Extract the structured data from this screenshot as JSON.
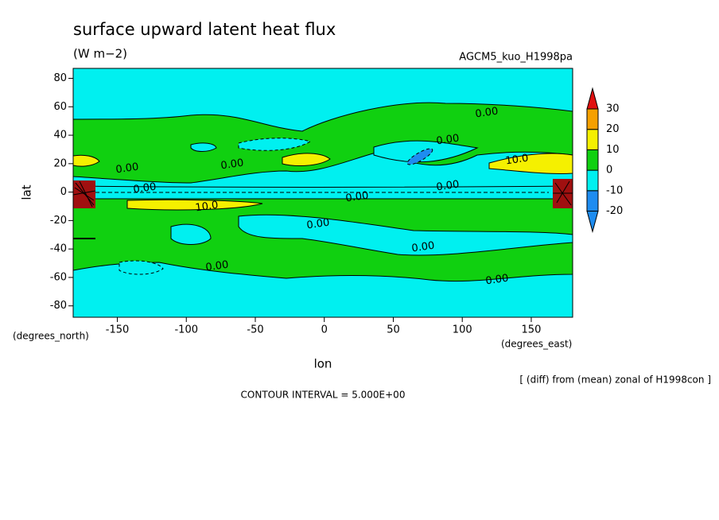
{
  "chart_data": {
    "type": "contour",
    "title": "surface upward latent heat flux",
    "subtitle": "(W m−2)",
    "experiment": "AGCM5_kuo_H1998pa",
    "xlabel": "lon",
    "ylabel": "lat",
    "xunit": "(degrees_east)",
    "yunit": "(degrees_north)",
    "note": "[ (diff) from (mean) zonal of H1998con ]",
    "contour_interval": "CONTOUR INTERVAL = 5.000E+00",
    "xlim": [
      -182,
      180
    ],
    "xticks": [
      -150,
      -100,
      -50,
      0,
      50,
      100,
      150
    ],
    "ylim": [
      -88,
      87
    ],
    "yticks": [
      80,
      60,
      40,
      20,
      0,
      -20,
      -40,
      -60,
      -80
    ],
    "colorbar": {
      "levels": [
        -20,
        -10,
        0,
        10,
        20,
        30
      ],
      "colors": [
        "#1e8cf0",
        "#1e8cf0",
        "#00f0f0",
        "#10d010",
        "#f5f000",
        "#f5a000",
        "#e01010"
      ]
    },
    "annotations": [
      "0.00",
      "0.00",
      "0.00",
      "0.00",
      "0.00",
      "0.00",
      "0.00",
      "0.00",
      "0.00",
      "0.00",
      "0.00",
      "10.0",
      "10.0"
    ]
  }
}
